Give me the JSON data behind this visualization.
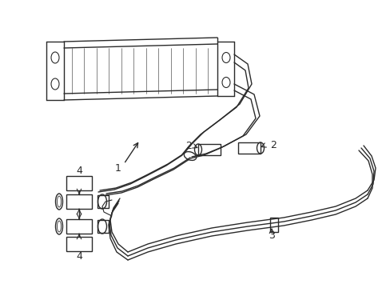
{
  "background_color": "#ffffff",
  "line_color": "#2a2a2a",
  "lw": 1.0,
  "figsize": [
    4.89,
    3.6
  ],
  "dpi": 100,
  "xlim": [
    0,
    489
  ],
  "ylim": [
    0,
    360
  ]
}
